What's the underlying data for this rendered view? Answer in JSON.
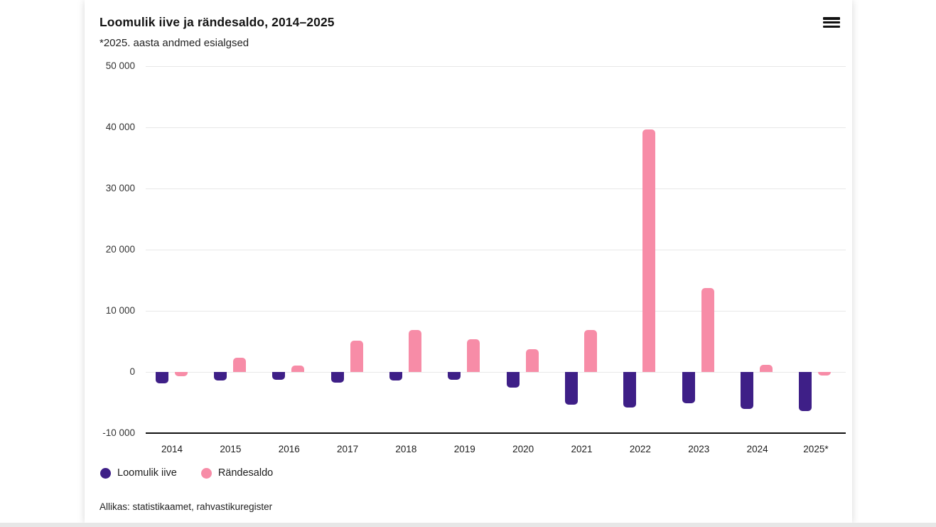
{
  "header": {
    "title": "Loomulik iive ja rändesaldo, 2014–2025",
    "subtitle": "*2025. aasta andmed esialgsed"
  },
  "footer": {
    "source": "Allikas: statistikaamet, rahvastikuregister"
  },
  "colors": {
    "loomulik_iive": "#3e1f87",
    "randesaldo": "#f78ca7",
    "gridline": "#e8e8e8",
    "axis_line": "#111111",
    "bottom_strip": "#e7e7e7"
  },
  "legend": {
    "items": [
      {
        "label": "Loomulik iive",
        "color": "#3e1f87"
      },
      {
        "label": "Rändesaldo",
        "color": "#f78ca7"
      }
    ]
  },
  "chart_data": {
    "type": "bar",
    "title": "Loomulik iive ja rändesaldo, 2014–2025",
    "subtitle": "*2025. aasta andmed esialgsed",
    "categories": [
      "2014",
      "2015",
      "2016",
      "2017",
      "2018",
      "2019",
      "2020",
      "2021",
      "2022",
      "2023",
      "2024",
      "2025*"
    ],
    "series": [
      {
        "name": "Loomulik iive",
        "color": "#3e1f87",
        "values": [
          -1900,
          -1400,
          -1300,
          -1750,
          -1400,
          -1300,
          -2600,
          -5400,
          -5800,
          -5100,
          -6000,
          -6400
        ]
      },
      {
        "name": "Rändesaldo",
        "color": "#f78ca7",
        "values": [
          -700,
          2300,
          1000,
          5100,
          6900,
          5300,
          3700,
          6900,
          39600,
          13700,
          1200,
          -600
        ]
      }
    ],
    "ylim": [
      -10000,
      50000
    ],
    "ytick_step": 10000,
    "ytick_labels": [
      "-10 000",
      "0",
      "10 000",
      "20 000",
      "30 000",
      "40 000",
      "50 000"
    ],
    "grid": true,
    "legend_position": "bottom",
    "source": "Allikas: statistikaamet, rahvastikuregister"
  }
}
